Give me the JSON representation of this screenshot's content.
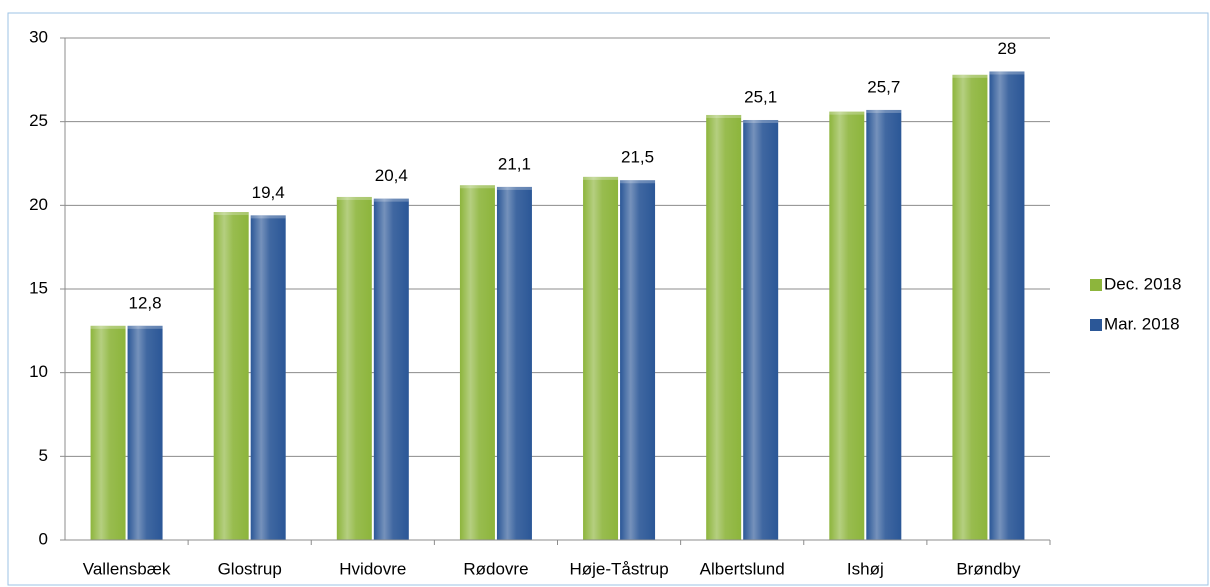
{
  "chart_data": {
    "type": "bar",
    "categories": [
      "Vallensbæk",
      "Glostrup",
      "Hvidovre",
      "Rødovre",
      "Høje-Tåstrup",
      "Albertslund",
      "Ishøj",
      "Brøndby"
    ],
    "series": [
      {
        "name": "Dec. 2018",
        "color": "#8db53c",
        "values": [
          12.8,
          19.6,
          20.5,
          21.2,
          21.7,
          25.4,
          25.6,
          27.8
        ]
      },
      {
        "name": "Mar. 2018",
        "color": "#2b5797",
        "values": [
          12.8,
          19.4,
          20.4,
          21.1,
          21.5,
          25.1,
          25.7,
          28
        ],
        "value_labels": [
          "12,8",
          "19,4",
          "20,4",
          "21,1",
          "21,5",
          "25,1",
          "25,7",
          "28"
        ]
      }
    ],
    "ylim": [
      0,
      30
    ],
    "yticks": [
      0,
      5,
      10,
      15,
      20,
      25,
      30
    ],
    "grid": true,
    "legend": "right"
  }
}
